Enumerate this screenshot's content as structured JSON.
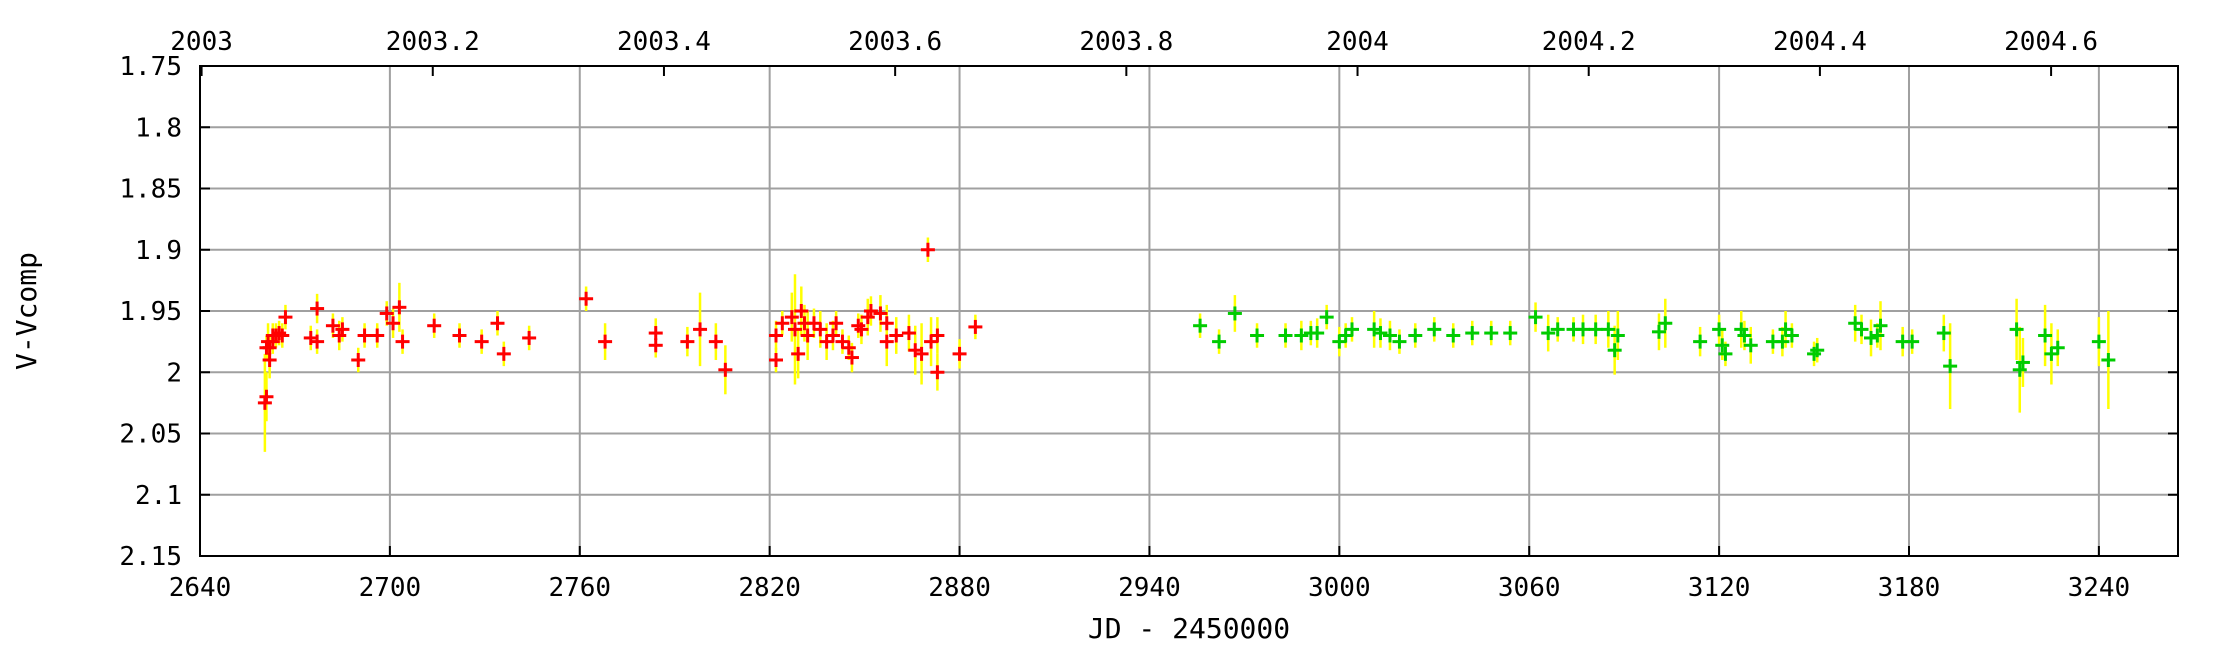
{
  "chart_data": {
    "type": "scatter",
    "title": "",
    "xlabel": "JD - 2450000",
    "ylabel": "V-Vcomp",
    "x_range": [
      2640,
      3265
    ],
    "y_range": [
      1.75,
      2.15
    ],
    "y_inverted": true,
    "grid": true,
    "x_ticks": [
      2640,
      2700,
      2760,
      2820,
      2880,
      2940,
      3000,
      3060,
      3120,
      3180,
      3240
    ],
    "y_ticks": [
      1.75,
      1.8,
      1.85,
      1.9,
      1.95,
      2,
      2.05,
      2.1,
      2.15
    ],
    "x_tick_labels": [
      "2640",
      "2700",
      "2760",
      "2820",
      "2880",
      "2940",
      "3000",
      "3060",
      "3120",
      "3180",
      "3240"
    ],
    "y_tick_labels": [
      "1.75",
      "1.8",
      "1.85",
      "1.9",
      "1.95",
      "2",
      "2.05",
      "2.1",
      "2.15"
    ],
    "top_axis": {
      "ticks": [
        2003,
        2003.2,
        2003.4,
        2003.6,
        2003.8,
        2004,
        2004.2,
        2004.4,
        2004.6
      ],
      "tick_labels": [
        "2003",
        "2003.2",
        "2003.4",
        "2003.6",
        "2003.8",
        "2004",
        "2004.2",
        "2004.4",
        "2004.6"
      ],
      "jd_at_2003": 2640.5,
      "days_per_year": 365.25
    },
    "error_bar_color": "#ffff00",
    "series": [
      {
        "color": "#ff0000",
        "points": [
          [
            2660.5,
            2.025,
            0.04
          ],
          [
            2661,
            2.02,
            0.02
          ],
          [
            2661,
            1.98,
            0.01
          ],
          [
            2661.5,
            1.975,
            0.015
          ],
          [
            2662,
            1.98,
            0.01
          ],
          [
            2662,
            1.99,
            0.015
          ],
          [
            2663,
            1.97,
            0.01
          ],
          [
            2663,
            1.975,
            0.01
          ],
          [
            2664,
            1.97,
            0.01
          ],
          [
            2665,
            1.968,
            0.01
          ],
          [
            2666,
            1.97,
            0.01
          ],
          [
            2667,
            1.955,
            0.01
          ],
          [
            2675,
            1.972,
            0.01
          ],
          [
            2677,
            1.948,
            0.012
          ],
          [
            2677,
            1.975,
            0.01
          ],
          [
            2682,
            1.962,
            0.01
          ],
          [
            2684,
            1.97,
            0.012
          ],
          [
            2685,
            1.965,
            0.01
          ],
          [
            2690,
            1.99,
            0.01
          ],
          [
            2692,
            1.97,
            0.01
          ],
          [
            2696,
            1.97,
            0.01
          ],
          [
            2699,
            1.952,
            0.01
          ],
          [
            2701,
            1.96,
            0.012
          ],
          [
            2703,
            1.947,
            0.02
          ],
          [
            2704,
            1.975,
            0.01
          ],
          [
            2714,
            1.962,
            0.01
          ],
          [
            2722,
            1.97,
            0.01
          ],
          [
            2729,
            1.975,
            0.01
          ],
          [
            2734,
            1.96,
            0.01
          ],
          [
            2736,
            1.985,
            0.01
          ],
          [
            2744,
            1.972,
            0.01
          ],
          [
            2762,
            1.94,
            0.01
          ],
          [
            2768,
            1.975,
            0.015
          ],
          [
            2784,
            1.968,
            0.012
          ],
          [
            2784,
            1.978,
            0.01
          ],
          [
            2794,
            1.975,
            0.012
          ],
          [
            2798,
            1.965,
            0.03
          ],
          [
            2803,
            1.975,
            0.015
          ],
          [
            2806,
            1.998,
            0.02
          ],
          [
            2822,
            1.97,
            0.012
          ],
          [
            2822,
            1.99,
            0.01
          ],
          [
            2824,
            1.96,
            0.01
          ],
          [
            2827,
            1.955,
            0.02
          ],
          [
            2828,
            1.965,
            0.045
          ],
          [
            2829,
            1.985,
            0.02
          ],
          [
            2830,
            1.95,
            0.02
          ],
          [
            2831,
            1.96,
            0.015
          ],
          [
            2832,
            1.97,
            0.02
          ],
          [
            2834,
            1.96,
            0.012
          ],
          [
            2836,
            1.965,
            0.015
          ],
          [
            2838,
            1.975,
            0.015
          ],
          [
            2840,
            1.97,
            0.012
          ],
          [
            2841,
            1.96,
            0.01
          ],
          [
            2843,
            1.975,
            0.01
          ],
          [
            2845,
            1.98,
            0.01
          ],
          [
            2846,
            1.988,
            0.012
          ],
          [
            2848,
            1.962,
            0.01
          ],
          [
            2849,
            1.965,
            0.012
          ],
          [
            2851,
            1.955,
            0.015
          ],
          [
            2852,
            1.95,
            0.012
          ],
          [
            2855,
            1.952,
            0.015
          ],
          [
            2857,
            1.96,
            0.015
          ],
          [
            2857,
            1.975,
            0.02
          ],
          [
            2860,
            1.97,
            0.015
          ],
          [
            2864,
            1.968,
            0.015
          ],
          [
            2866,
            1.982,
            0.02
          ],
          [
            2868,
            1.985,
            0.025
          ],
          [
            2870,
            1.9,
            0.01
          ],
          [
            2871,
            1.975,
            0.02
          ],
          [
            2873,
            2.0,
            0.015
          ],
          [
            2873,
            1.97,
            0.015
          ],
          [
            2880,
            1.985,
            0.012
          ],
          [
            2885,
            1.963,
            0.01
          ]
        ]
      },
      {
        "color": "#00cc00",
        "points": [
          [
            2956,
            1.962,
            0.01
          ],
          [
            2962,
            1.975,
            0.01
          ],
          [
            2967,
            1.952,
            0.015
          ],
          [
            2974,
            1.97,
            0.01
          ],
          [
            2983,
            1.97,
            0.01
          ],
          [
            2988,
            1.97,
            0.012
          ],
          [
            2991,
            1.968,
            0.01
          ],
          [
            2993,
            1.968,
            0.012
          ],
          [
            2996,
            1.955,
            0.01
          ],
          [
            3000,
            1.975,
            0.012
          ],
          [
            3002,
            1.97,
            0.01
          ],
          [
            3004,
            1.965,
            0.01
          ],
          [
            3011,
            1.965,
            0.015
          ],
          [
            3013,
            1.968,
            0.012
          ],
          [
            3016,
            1.97,
            0.012
          ],
          [
            3019,
            1.975,
            0.01
          ],
          [
            3024,
            1.97,
            0.01
          ],
          [
            3030,
            1.965,
            0.01
          ],
          [
            3036,
            1.97,
            0.01
          ],
          [
            3042,
            1.968,
            0.01
          ],
          [
            3048,
            1.968,
            0.01
          ],
          [
            3054,
            1.968,
            0.01
          ],
          [
            3062,
            1.955,
            0.012
          ],
          [
            3066,
            1.968,
            0.015
          ],
          [
            3069,
            1.965,
            0.01
          ],
          [
            3074,
            1.965,
            0.01
          ],
          [
            3077,
            1.965,
            0.012
          ],
          [
            3081,
            1.965,
            0.012
          ],
          [
            3085,
            1.965,
            0.015
          ],
          [
            3087,
            1.982,
            0.02
          ],
          [
            3088,
            1.97,
            0.02
          ],
          [
            3101,
            1.967,
            0.015
          ],
          [
            3103,
            1.96,
            0.02
          ],
          [
            3114,
            1.975,
            0.012
          ],
          [
            3120,
            1.965,
            0.012
          ],
          [
            3121,
            1.978,
            0.012
          ],
          [
            3122,
            1.985,
            0.01
          ],
          [
            3127,
            1.965,
            0.015
          ],
          [
            3128,
            1.97,
            0.012
          ],
          [
            3130,
            1.978,
            0.015
          ],
          [
            3137,
            1.975,
            0.01
          ],
          [
            3140,
            1.975,
            0.012
          ],
          [
            3141,
            1.965,
            0.015
          ],
          [
            3143,
            1.97,
            0.01
          ],
          [
            3150,
            1.985,
            0.01
          ],
          [
            3151,
            1.982,
            0.01
          ],
          [
            3163,
            1.96,
            0.015
          ],
          [
            3165,
            1.965,
            0.012
          ],
          [
            3168,
            1.972,
            0.015
          ],
          [
            3170,
            1.97,
            0.01
          ],
          [
            3171,
            1.962,
            0.02
          ],
          [
            3178,
            1.975,
            0.012
          ],
          [
            3181,
            1.975,
            0.01
          ],
          [
            3191,
            1.968,
            0.015
          ],
          [
            3193,
            1.995,
            0.035
          ],
          [
            3214,
            1.965,
            0.025
          ],
          [
            3215,
            1.998,
            0.035
          ],
          [
            3216,
            1.992,
            0.02
          ],
          [
            3223,
            1.97,
            0.025
          ],
          [
            3225,
            1.985,
            0.025
          ],
          [
            3227,
            1.98,
            0.015
          ],
          [
            3240,
            1.975,
            0.02
          ],
          [
            3243,
            1.99,
            0.04
          ]
        ]
      }
    ]
  }
}
